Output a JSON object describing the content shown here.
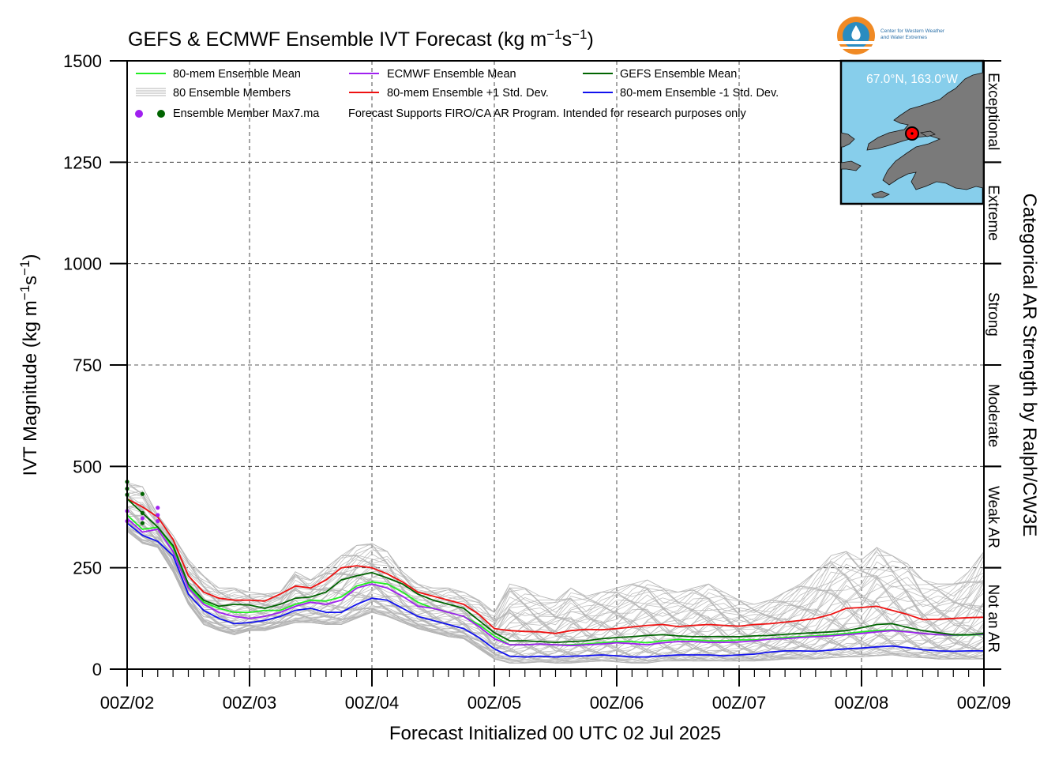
{
  "title_main": "GEFS & ECMWF Ensemble IVT Forecast (kg m",
  "title_sup1": "−1",
  "title_mid": "s",
  "title_sup2": "−1",
  "title_end": ")",
  "xlabel": "Forecast Initialized 00 UTC 02 Jul 2025",
  "ylabel_main": "IVT Magnitude (kg m",
  "ylabel_sup1": "−1",
  "ylabel_mid": "s",
  "ylabel_sup2": "−1",
  "ylabel_end": ")",
  "right_axis_label": "Categorical AR Strength by Ralph/CW3E",
  "location_label": "67.0°N, 163.0°W",
  "logo_line1": "Center for Western Weather",
  "logo_line2": "and Water Extremes",
  "legend": {
    "ens_mean": "80-mem Ensemble Mean",
    "ecmwf_mean": "ECMWF Ensemble Mean",
    "gefs_mean": "GEFS Ensemble Mean",
    "members": "80 Ensemble Members",
    "plus_sd": "80-mem Ensemble +1 Std. Dev.",
    "minus_sd": "80-mem Ensemble -1 Std. Dev.",
    "max7": "Ensemble Member Max7.ma",
    "note": "Forecast Supports FIRO/CA AR Program. Intended for research purposes only"
  },
  "colors": {
    "ens_mean": "#22ee22",
    "ecmwf_mean": "#a020f0",
    "gefs_mean": "#006400",
    "members": "#b4b4b4",
    "plus_sd": "#ee1111",
    "minus_sd": "#1111ee",
    "ocean": "#87ceeb",
    "land": "#7a7a7a",
    "marker": "#ff0000"
  },
  "chart_data": {
    "type": "line",
    "x_unit": "forecast hours since 00 UTC 02 Jul 2025",
    "xlim": [
      0,
      168
    ],
    "ylim": [
      0,
      1500
    ],
    "grid": true,
    "legend_position": "top-left",
    "x_ticks": [
      {
        "x": 0,
        "label": "00Z/02"
      },
      {
        "x": 24,
        "label": "00Z/03"
      },
      {
        "x": 48,
        "label": "00Z/04"
      },
      {
        "x": 72,
        "label": "00Z/05"
      },
      {
        "x": 96,
        "label": "00Z/06"
      },
      {
        "x": 120,
        "label": "00Z/07"
      },
      {
        "x": 144,
        "label": "00Z/08"
      },
      {
        "x": 168,
        "label": "00Z/09"
      }
    ],
    "y_ticks": [
      0,
      250,
      500,
      750,
      1000,
      1250,
      1500
    ],
    "categories": [
      {
        "name": "Not an AR",
        "range": [
          0,
          250
        ]
      },
      {
        "name": "Weak AR",
        "range": [
          250,
          500
        ]
      },
      {
        "name": "Moderate",
        "range": [
          500,
          750
        ]
      },
      {
        "name": "Strong",
        "range": [
          750,
          1000
        ]
      },
      {
        "name": "Extreme",
        "range": [
          1000,
          1250
        ]
      },
      {
        "name": "Exceptional",
        "range": [
          1250,
          1500
        ]
      }
    ],
    "x": [
      0,
      3,
      6,
      9,
      12,
      15,
      18,
      21,
      24,
      27,
      30,
      33,
      36,
      39,
      42,
      45,
      48,
      51,
      54,
      57,
      60,
      63,
      66,
      69,
      72,
      75,
      78,
      81,
      84,
      87,
      90,
      93,
      96,
      99,
      102,
      105,
      108,
      111,
      114,
      117,
      120,
      123,
      126,
      129,
      132,
      135,
      138,
      141,
      144,
      147,
      150,
      153,
      156,
      159,
      162,
      165,
      168
    ],
    "series": [
      {
        "name": "80-mem Ensemble Mean",
        "values": [
          380,
          345,
          350,
          300,
          205,
          165,
          150,
          140,
          140,
          145,
          145,
          160,
          170,
          168,
          178,
          205,
          215,
          210,
          190,
          165,
          150,
          140,
          130,
          110,
          82,
          60,
          60,
          62,
          60,
          60,
          62,
          65,
          68,
          68,
          65,
          70,
          73,
          72,
          70,
          70,
          72,
          72,
          75,
          78,
          80,
          82,
          85,
          88,
          92,
          95,
          97,
          93,
          88,
          85,
          83,
          84,
          85
        ]
      },
      {
        "name": "ECMWF Ensemble Mean",
        "values": [
          372,
          338,
          345,
          290,
          200,
          160,
          140,
          130,
          125,
          130,
          140,
          155,
          165,
          160,
          170,
          200,
          210,
          200,
          180,
          155,
          150,
          140,
          130,
          105,
          75,
          60,
          60,
          62,
          60,
          58,
          60,
          62,
          65,
          63,
          60,
          65,
          68,
          68,
          66,
          66,
          67,
          70,
          74,
          75,
          78,
          80,
          82,
          85,
          88,
          92,
          95,
          92,
          88,
          85,
          84,
          85,
          86
        ]
      },
      {
        "name": "GEFS Ensemble Mean",
        "values": [
          420,
          385,
          350,
          305,
          210,
          170,
          155,
          160,
          158,
          150,
          160,
          175,
          178,
          190,
          220,
          230,
          238,
          225,
          210,
          185,
          170,
          160,
          150,
          120,
          90,
          70,
          70,
          68,
          66,
          68,
          70,
          75,
          78,
          80,
          83,
          85,
          82,
          80,
          80,
          80,
          80,
          82,
          83,
          86,
          88,
          90,
          92,
          95,
          102,
          110,
          112,
          103,
          95,
          90,
          85,
          85,
          88
        ]
      },
      {
        "name": "80-mem Ensemble +1 Std. Dev.",
        "values": [
          420,
          400,
          375,
          320,
          230,
          190,
          175,
          170,
          170,
          168,
          185,
          205,
          200,
          220,
          250,
          255,
          250,
          235,
          215,
          190,
          180,
          170,
          160,
          135,
          100,
          95,
          93,
          92,
          88,
          95,
          98,
          97,
          100,
          104,
          108,
          110,
          105,
          108,
          110,
          108,
          106,
          110,
          112,
          116,
          120,
          125,
          135,
          150,
          152,
          155,
          145,
          135,
          122,
          123,
          125,
          127,
          128
        ]
      },
      {
        "name": "80-mem Ensemble -1 Std. Dev.",
        "values": [
          360,
          330,
          315,
          280,
          185,
          145,
          125,
          112,
          115,
          120,
          130,
          145,
          150,
          140,
          140,
          160,
          175,
          170,
          150,
          130,
          120,
          110,
          100,
          78,
          50,
          32,
          30,
          32,
          30,
          32,
          33,
          35,
          33,
          30,
          30,
          33,
          35,
          35,
          35,
          33,
          35,
          37,
          42,
          45,
          45,
          44,
          47,
          50,
          52,
          55,
          57,
          53,
          48,
          45,
          44,
          45,
          45
        ]
      }
    ],
    "members_envelope": {
      "name": "80 Ensemble Members",
      "count": 80,
      "min": [
        340,
        310,
        300,
        240,
        160,
        110,
        95,
        85,
        95,
        95,
        105,
        115,
        115,
        110,
        110,
        125,
        140,
        130,
        115,
        100,
        90,
        80,
        75,
        50,
        25,
        15,
        15,
        18,
        15,
        15,
        18,
        20,
        18,
        15,
        15,
        20,
        20,
        20,
        20,
        20,
        20,
        20,
        22,
        25,
        25,
        25,
        28,
        30,
        30,
        33,
        35,
        30,
        28,
        25,
        25,
        25,
        25
      ],
      "max": [
        460,
        450,
        380,
        330,
        270,
        230,
        200,
        200,
        190,
        185,
        190,
        240,
        220,
        250,
        280,
        305,
        310,
        290,
        240,
        210,
        200,
        200,
        190,
        170,
        140,
        210,
        200,
        180,
        170,
        200,
        180,
        190,
        200,
        210,
        220,
        200,
        190,
        200,
        210,
        190,
        170,
        160,
        170,
        190,
        210,
        240,
        280,
        290,
        270,
        300,
        280,
        260,
        220,
        210,
        210,
        240,
        290
      ]
    },
    "max7_markers": [
      {
        "series": "GEFS",
        "x": 0,
        "y": 462
      },
      {
        "series": "GEFS",
        "x": 0,
        "y": 445
      },
      {
        "series": "GEFS",
        "x": 0,
        "y": 430
      },
      {
        "series": "GEFS",
        "x": 3,
        "y": 432
      },
      {
        "series": "GEFS",
        "x": 3,
        "y": 385
      },
      {
        "series": "GEFS",
        "x": 3,
        "y": 360
      },
      {
        "series": "ECMWF",
        "x": 0,
        "y": 390
      },
      {
        "series": "ECMWF",
        "x": 0,
        "y": 365
      },
      {
        "series": "ECMWF",
        "x": 3,
        "y": 372
      },
      {
        "series": "ECMWF",
        "x": 6,
        "y": 398
      },
      {
        "series": "ECMWF",
        "x": 6,
        "y": 380
      },
      {
        "series": "ECMWF",
        "x": 6,
        "y": 365
      }
    ]
  }
}
